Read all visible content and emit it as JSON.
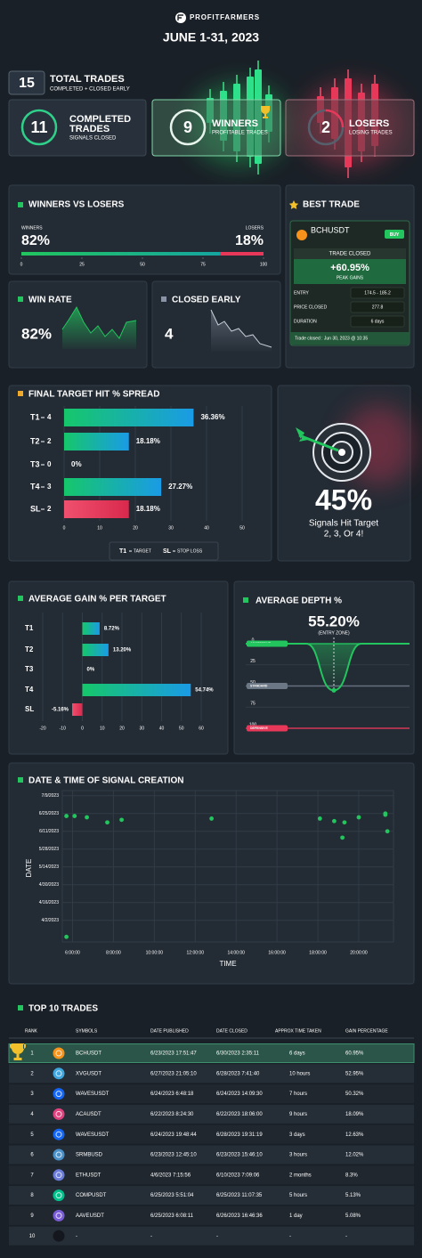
{
  "header": {
    "brand": "PROFITFARMERS",
    "period": "JUNE 1-31, 2023"
  },
  "total": {
    "value": 15,
    "label": "TOTAL TRADES",
    "sublabel": "COMPLETED + CLOSED EARLY"
  },
  "cards": [
    {
      "value": 11,
      "label": [
        "COMPLETED",
        "TRADES"
      ],
      "sublabel": "SIGNALS CLOSED",
      "color": "#2fd18a"
    },
    {
      "value": 9,
      "label": [
        "WINNERS"
      ],
      "sublabel": "PROFITABLE TRADES",
      "color": "#e6f4ec"
    },
    {
      "value": 2,
      "label": [
        "LOSERS"
      ],
      "sublabel": "LOSING TRADES",
      "color": "#e8385a"
    }
  ],
  "winners_vs_losers": {
    "title": "WINNERS VS LOSERS",
    "series": [
      {
        "name": "WINNERS",
        "value": 82,
        "value_label": "82%",
        "color": "#1fc08a"
      },
      {
        "name": "LOSERS",
        "value": 18,
        "value_label": "18%",
        "color": "#e8385a"
      }
    ],
    "xlim": [
      0,
      100
    ],
    "xticks": [
      0,
      25,
      50,
      75,
      100
    ]
  },
  "win_rate": {
    "title": "WIN RATE",
    "value": 82,
    "value_label": "82%",
    "color": "#22c55e"
  },
  "closed_early": {
    "title": "CLOSED EARLY",
    "value": 4,
    "color": "#8a93a6"
  },
  "best_trade": {
    "title": "BEST TRADE",
    "symbol": "BCHUSDT",
    "side": "BUY",
    "status": "TRADE CLOSED",
    "gain": "+60.95%",
    "gain_label": "PEAK GAINS",
    "rows": [
      {
        "label": "ENTRY",
        "value": "174.5 - 185.2"
      },
      {
        "label": "PRICE CLOSED",
        "value": "277.8"
      },
      {
        "label": "DURATION",
        "value": "6 days"
      }
    ],
    "footer": "Trade closed : Jun 30, 2023 @ 10:35"
  },
  "final_target": {
    "title": "FINAL TARGET HIT % SPREAD",
    "type": "bar",
    "categories": [
      "T1",
      "T2",
      "T3",
      "T4",
      "SL"
    ],
    "counts": [
      4,
      2,
      0,
      3,
      2
    ],
    "values": [
      36.36,
      18.18,
      0,
      27.27,
      18.18
    ],
    "value_labels": [
      "36.36%",
      "18.18%",
      "0%",
      "27.27%",
      "18.18%"
    ],
    "label_colors": [
      "#f0a92a",
      "#f08a2a",
      "#f0a92a",
      "#f0a92a",
      "#e8385a"
    ],
    "bar_colors": [
      "blue",
      "blue",
      "blue",
      "blue",
      "red"
    ],
    "xlim": [
      0,
      50
    ],
    "xticks": [
      0,
      10,
      20,
      30,
      40,
      50
    ],
    "legend": [
      {
        "key": "T1",
        "text": "TARGET",
        "color": "#f0a92a"
      },
      {
        "key": "SL",
        "text": "STOP LOSS",
        "color": "#e8385a"
      }
    ],
    "highlight": {
      "value": 45,
      "value_label": "45%",
      "caption": [
        "Signals Hit Target",
        "2, 3, Or 4!"
      ]
    }
  },
  "average_gain": {
    "title": "AVERAGE GAIN % PER TARGET",
    "type": "bar",
    "categories": [
      "T1",
      "T2",
      "T3",
      "T4",
      "SL"
    ],
    "values": [
      8.72,
      13.2,
      0,
      54.74,
      -5.16
    ],
    "value_labels": [
      "8.72%",
      "13.20%",
      "0%",
      "54.74%",
      "-5.16%"
    ],
    "label_colors": [
      "#f0a92a",
      "#f0a92a",
      "#f0a92a",
      "#f0a92a",
      "#e8385a"
    ],
    "xlim": [
      -20,
      60
    ],
    "xticks": [
      -20,
      -10,
      0,
      10,
      20,
      30,
      40,
      50,
      60
    ]
  },
  "average_depth": {
    "title": "AVERAGE DEPTH %",
    "value": 55.2,
    "value_label": "55.20%",
    "note": "(ENTRY ZONE)",
    "ylim": [
      0,
      100
    ],
    "yticks": [
      0,
      25,
      50,
      75,
      100
    ],
    "zones": [
      {
        "name": "AGGRESSIVE",
        "value": 0,
        "color": "#22c55e"
      },
      {
        "name": "STANDARD",
        "value": 50,
        "color": "#6b7785"
      },
      {
        "name": "DEFENSIVE",
        "value": 100,
        "color": "#e8385a"
      }
    ]
  },
  "signal_creation": {
    "title": "DATE & TIME OF SIGNAL CREATION",
    "type": "scatter",
    "x_label": "TIME",
    "y_label": "DATE",
    "color": "#22c55e",
    "x": [
      5.7,
      6.1,
      6.7,
      7.7,
      8.4,
      12.8,
      18.1,
      18.8,
      19.3,
      19.2,
      20.0,
      21.3,
      21.3,
      21.4,
      5.7
    ],
    "y": [
      "6/23/2023",
      "6/23/2023",
      "6/22/2023",
      "6/18/2023",
      "6/20/2023",
      "6/21/2023",
      "6/21/2023",
      "6/19/2023",
      "6/18/2023",
      "6/6/2023",
      "6/22/2023",
      "6/25/2023",
      "6/24/2023",
      "6/11/2023",
      "3/20/2023"
    ],
    "xlim": [
      5.5,
      21.7
    ],
    "xticks": [
      {
        "value": 6,
        "label": "6:00:00"
      },
      {
        "value": 8,
        "label": "8:00:00"
      },
      {
        "value": 10,
        "label": "10:00:00"
      },
      {
        "value": 12,
        "label": "12:00:00"
      },
      {
        "value": 14,
        "label": "14:00:00"
      },
      {
        "value": 16,
        "label": "16:00:00"
      },
      {
        "value": 18,
        "label": "18:00:00"
      },
      {
        "value": 20,
        "label": "20:00:00"
      }
    ],
    "ylim": [
      "3/16/2023",
      "7/13/2023"
    ],
    "yticks": [
      "7/9/2023",
      "6/25/2023",
      "6/11/2023",
      "5/28/2023",
      "5/14/2023",
      "4/30/2023",
      "4/16/2023",
      "4/2/2023"
    ],
    "grid": true
  },
  "top_trades": {
    "title": "TOP 10 TRADES",
    "columns": [
      "RANK",
      "SYMBOLS",
      "DATE PUBLISHED",
      "DATE CLOSED",
      "APPROX TIME TAKEN",
      "GAIN PERCENTAGE"
    ],
    "rows": [
      [
        1,
        "BCHUSDT",
        "6/23/2023 17:51:47",
        "6/30/2023 2:35:11",
        "6 days",
        "60.95%"
      ],
      [
        2,
        "XVGUSDT",
        "6/27/2023 21:05:10",
        "6/28/2023 7:41:40",
        "10 hours",
        "52.95%"
      ],
      [
        3,
        "WAVESUSDT",
        "6/24/2023 6:48:18",
        "6/24/2023 14:09:30",
        "7 hours",
        "50.32%"
      ],
      [
        4,
        "ACAUSDT",
        "6/22/2023 8:24:30",
        "6/22/2023 18:06:00",
        "9 hours",
        "18.09%"
      ],
      [
        5,
        "WAVESUSDT",
        "6/24/2023 19:48:44",
        "6/28/2023 19:31:19",
        "3 days",
        "12.63%"
      ],
      [
        6,
        "SRMBUSD",
        "6/23/2023 12:45:10",
        "6/23/2023 15:46:10",
        "3 hours",
        "12.02%"
      ],
      [
        7,
        "ETHUSDT",
        "4/6/2023 7:15:56",
        "6/10/2023 7:09:06",
        "2 months",
        "8.3%"
      ],
      [
        8,
        "COMPUSDT",
        "6/25/2023 5:51:04",
        "6/25/2023 11:07:35",
        "5 hours",
        "5.13%"
      ],
      [
        9,
        "AAVEUSDT",
        "6/25/2023 6:08:11",
        "6/26/2023 16:46:36",
        "1 day",
        "5.08%"
      ],
      [
        10,
        "-",
        "-",
        "-",
        "-",
        "-"
      ]
    ],
    "icon_colors": [
      "#f7931a",
      "#3fa7e0",
      "#1466f5",
      "#e0427f",
      "#1466f5",
      "#4a90c8",
      "#6a7bd8",
      "#00c08b",
      "#7a5cd6",
      "#14181e"
    ]
  }
}
